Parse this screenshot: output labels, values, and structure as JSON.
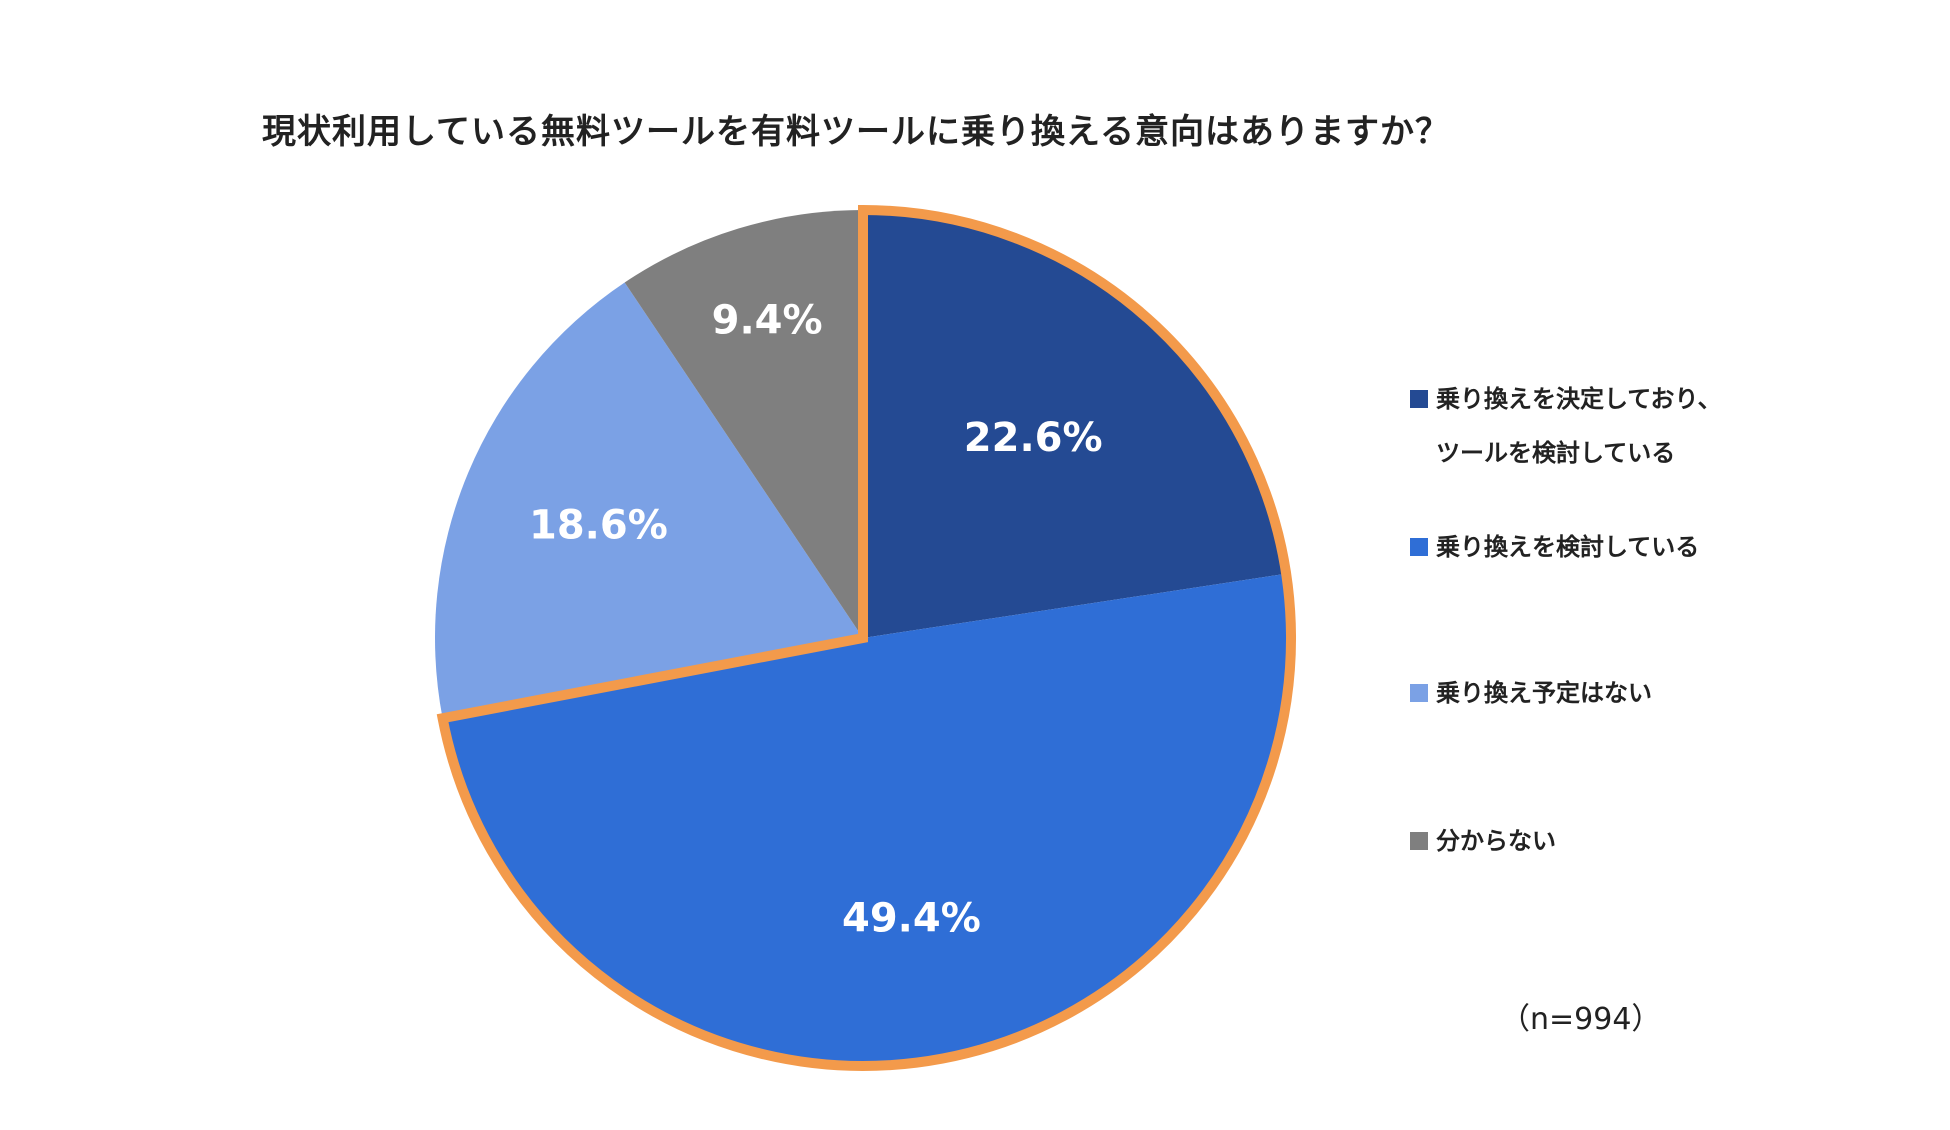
{
  "chart_data": {
    "type": "pie",
    "title": "現状利用している無料ツールを有料ツールに乗り換える意向はありますか？",
    "note": "（n=994）",
    "slices": [
      {
        "label_lines": [
          "乗り換えを決定しており、",
          "ツールを検討している"
        ],
        "value": 22.6,
        "display": "22.6%",
        "color": "#244A93",
        "highlighted": true
      },
      {
        "label_lines": [
          "乗り換えを検討している"
        ],
        "value": 49.4,
        "display": "49.4%",
        "color": "#2F6ED6",
        "highlighted": true
      },
      {
        "label_lines": [
          "乗り換え予定はない"
        ],
        "value": 18.6,
        "display": "18.6%",
        "color": "#7BA1E5",
        "highlighted": false
      },
      {
        "label_lines": [
          "分からない"
        ],
        "value": 9.4,
        "display": "9.4%",
        "color": "#7F7F7F",
        "highlighted": false
      }
    ],
    "start_angle": "12 o'clock",
    "direction": "clockwise",
    "legend_position": "right",
    "highlight_color": "#F39A4B"
  }
}
